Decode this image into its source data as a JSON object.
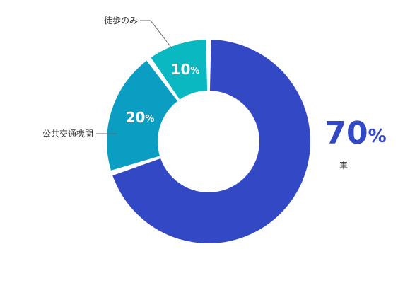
{
  "chart_data": {
    "type": "pie",
    "donut": true,
    "slices": [
      {
        "label": "車",
        "value": 70,
        "percent_label": "70%",
        "color": "#3348c4"
      },
      {
        "label": "公共交通機関",
        "value": 20,
        "percent_label": "20%",
        "color": "#0a9ec2"
      },
      {
        "label": "徒歩のみ",
        "value": 10,
        "percent_label": "10%",
        "color": "#0ab8c2"
      }
    ],
    "legend": "none",
    "value_unit": "%"
  }
}
